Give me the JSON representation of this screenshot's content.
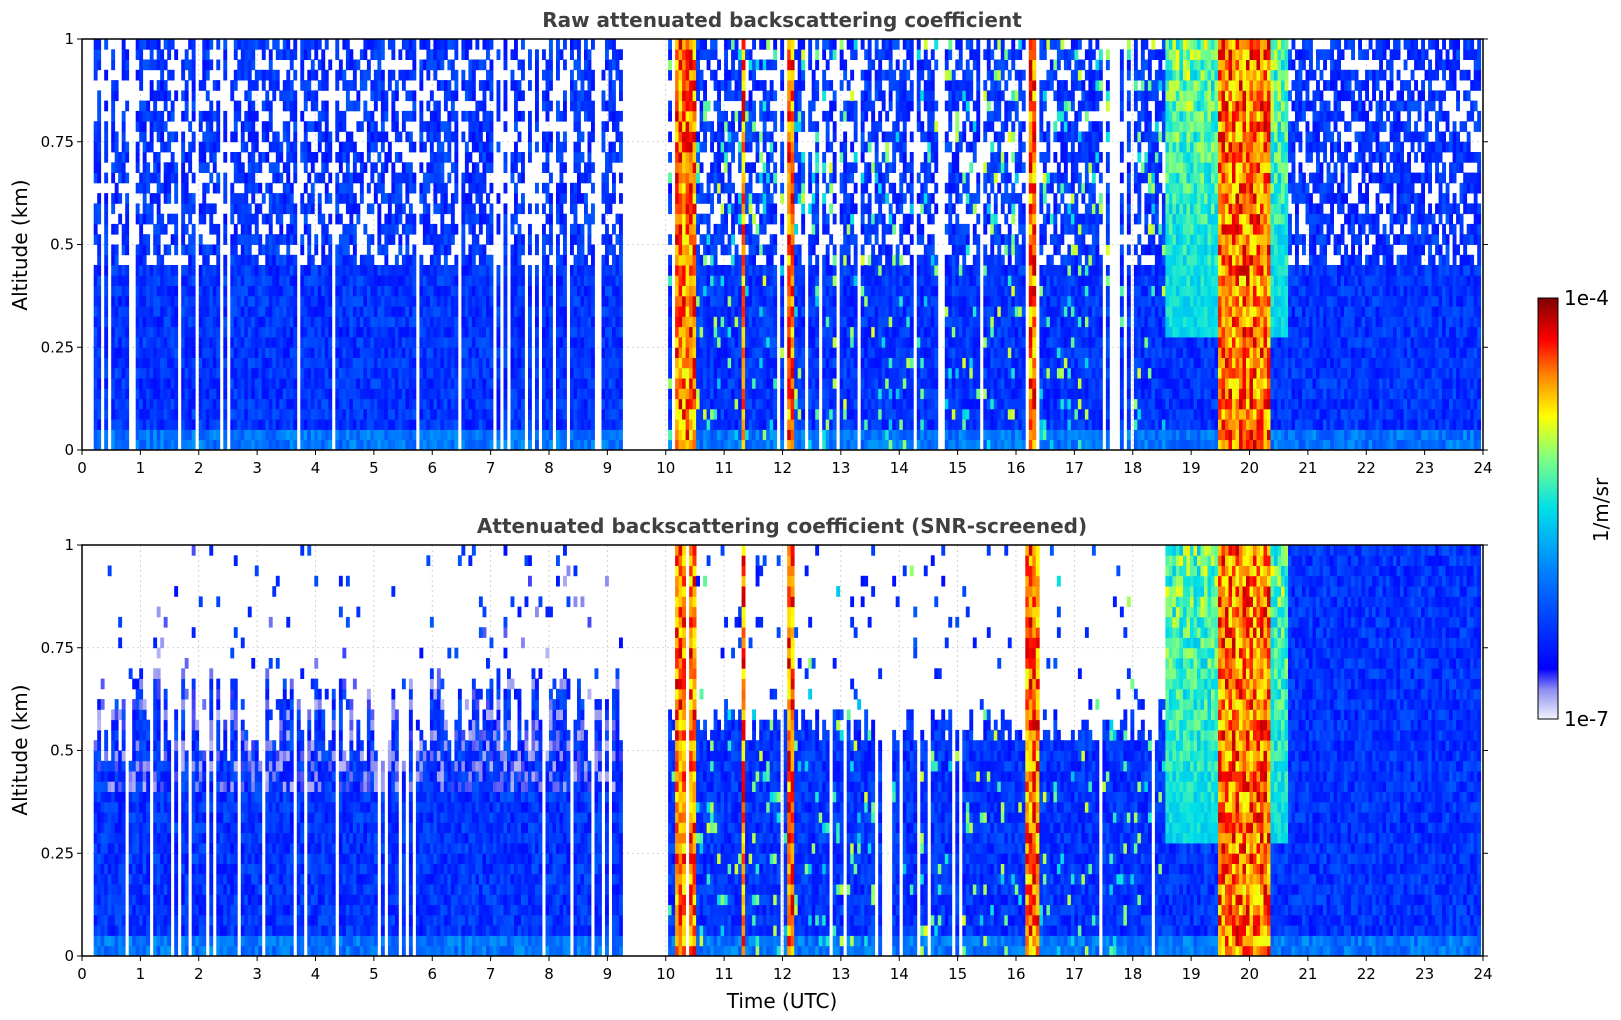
{
  "chart_data": [
    {
      "type": "heatmap",
      "title": "Raw attenuated backscattering coefficient",
      "xlabel": "",
      "ylabel": "Altitude (km)",
      "xlim": [
        0,
        24
      ],
      "ylim": [
        0,
        1
      ],
      "xticks": [
        "0",
        "1",
        "2",
        "3",
        "4",
        "5",
        "6",
        "7",
        "8",
        "9",
        "10",
        "11",
        "12",
        "13",
        "14",
        "15",
        "16",
        "17",
        "18",
        "19",
        "20",
        "21",
        "22",
        "23",
        "24"
      ],
      "yticks": [
        "0",
        "0.25",
        "0.5",
        "0.75",
        "1"
      ],
      "grid": true,
      "data_gaps_utc": [
        [
          9.2,
          10.0
        ]
      ],
      "strong_echo_utc": [
        [
          10.15,
          10.5
        ],
        [
          11.25,
          11.35
        ],
        [
          12.05,
          12.2
        ],
        [
          16.15,
          16.35
        ],
        [
          19.4,
          20.35
        ]
      ],
      "scale": "log",
      "zrange": [
        "1e-7",
        "1e-4"
      ]
    },
    {
      "type": "heatmap",
      "title": "Attenuated backscattering coefficient (SNR-screened)",
      "xlabel": "Time (UTC)",
      "ylabel": "Altitude (km)",
      "xlim": [
        0,
        24
      ],
      "ylim": [
        0,
        1
      ],
      "xticks": [
        "0",
        "1",
        "2",
        "3",
        "4",
        "5",
        "6",
        "7",
        "8",
        "9",
        "10",
        "11",
        "12",
        "13",
        "14",
        "15",
        "16",
        "17",
        "18",
        "19",
        "20",
        "21",
        "22",
        "23",
        "24"
      ],
      "yticks": [
        "0",
        "0.25",
        "0.5",
        "0.75",
        "1"
      ],
      "grid": true,
      "data_gaps_utc": [
        [
          9.2,
          10.0
        ]
      ],
      "strong_echo_utc": [
        [
          10.15,
          10.5
        ],
        [
          11.25,
          11.35
        ],
        [
          12.05,
          12.2
        ],
        [
          16.15,
          16.35
        ],
        [
          19.4,
          20.35
        ]
      ],
      "scale": "log",
      "zrange": [
        "1e-7",
        "1e-4"
      ]
    }
  ],
  "colorbar": {
    "label": "1/m/sr",
    "max_label": "1e-4",
    "min_label": "1e-7",
    "colormap": "jet"
  }
}
